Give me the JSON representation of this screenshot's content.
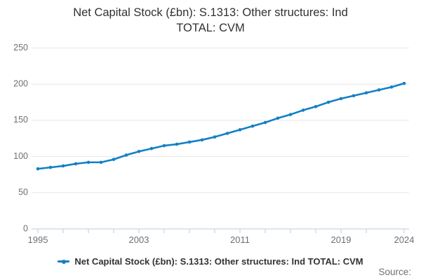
{
  "title_lines": [
    "Net Capital Stock (£bn): S.1313: Other structures: Ind",
    "TOTAL: CVM"
  ],
  "legend": {
    "label": "Net Capital Stock (£bn): S.1313: Other structures: Ind TOTAL: CVM"
  },
  "source_label": "Source:",
  "colors": {
    "line": "#1380c4",
    "grid": "#e6e6e6",
    "axis": "#c9d5e4",
    "tick_text": "#6f6f6f",
    "title_text": "#313131"
  },
  "chart_data": {
    "type": "line",
    "title": "Net Capital Stock (£bn): S.1313: Other structures: Ind TOTAL: CVM",
    "series_name": "Net Capital Stock (£bn): S.1313: Other structures: Ind TOTAL: CVM",
    "xlabel": "",
    "ylabel": "",
    "x": [
      1995,
      1996,
      1997,
      1998,
      1999,
      2000,
      2001,
      2002,
      2003,
      2004,
      2005,
      2006,
      2007,
      2008,
      2009,
      2010,
      2011,
      2012,
      2013,
      2014,
      2015,
      2016,
      2017,
      2018,
      2019,
      2020,
      2021,
      2022,
      2023,
      2024
    ],
    "values": [
      83,
      85,
      87,
      90,
      92,
      92,
      96,
      102,
      107,
      111,
      115,
      117,
      120,
      123,
      127,
      132,
      137,
      142,
      147,
      153,
      158,
      164,
      169,
      175,
      180,
      184,
      188,
      192,
      196,
      201
    ],
    "ylim": [
      0,
      250
    ],
    "y_ticks": [
      0,
      50,
      100,
      150,
      200,
      250
    ],
    "x_tick_years": [
      1995,
      1997,
      1999,
      2001,
      2003,
      2005,
      2007,
      2009,
      2011,
      2013,
      2015,
      2017,
      2019,
      2021,
      2024
    ],
    "x_label_years": [
      1995,
      2003,
      2011,
      2019,
      2024
    ],
    "grid": "horizontal-only",
    "legend_position": "bottom"
  }
}
